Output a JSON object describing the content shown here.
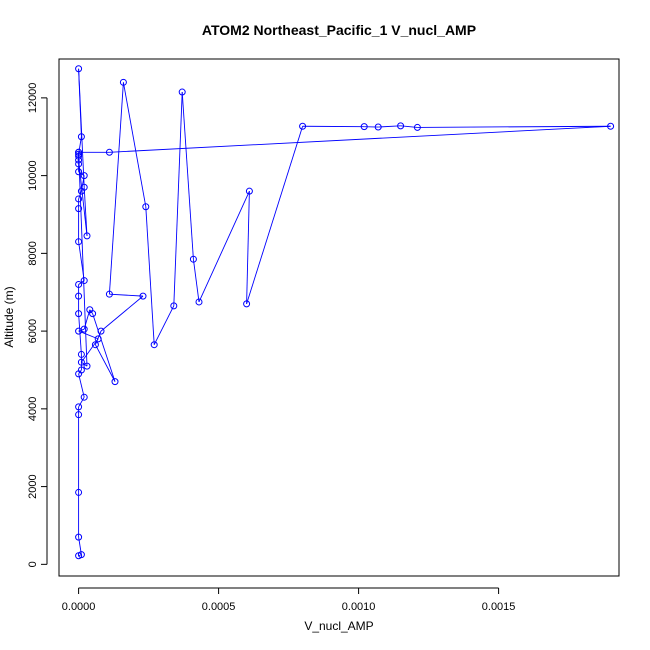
{
  "chart_data": {
    "type": "line",
    "title": "ATOM2 Northeast_Pacific_1 V_nucl_AMP",
    "xlabel": "V_nucl_AMP",
    "ylabel": "Altitude (m)",
    "xlim": [
      -7e-05,
      0.00193
    ],
    "ylim": [
      -300,
      13000
    ],
    "xticks": [
      0,
      0.0005,
      0.001,
      0.0015
    ],
    "xtick_labels": [
      "0.0000",
      "0.0005",
      "0.0010",
      "0.0015"
    ],
    "yticks": [
      0,
      2000,
      4000,
      6000,
      8000,
      10000,
      12000
    ],
    "ytick_labels": [
      "0",
      "2000",
      "4000",
      "6000",
      "8000",
      "10000",
      "12000"
    ],
    "grid": false,
    "legend": "none",
    "color": "#0000ff",
    "markers": "open-circle",
    "series": [
      {
        "x": [
          0.0,
          1e-05,
          0.0,
          0.0,
          0.0,
          0.0,
          2e-05,
          0.0,
          1e-05,
          1e-05,
          0.0,
          0.0,
          0.0,
          2e-05,
          0.0,
          0.0,
          0.0,
          1e-05,
          2e-05,
          0.0,
          0.0,
          0.0,
          0.0,
          1e-05,
          0.0,
          2e-05,
          3e-05,
          0.0,
          0.0,
          3e-05,
          1e-05,
          7e-05,
          0.0,
          2e-05,
          4e-05,
          5e-05,
          0.00013,
          6e-05,
          8e-05,
          0.00023,
          0.00011,
          0.00016,
          0.00024,
          0.00027,
          0.00034,
          0.00037,
          0.00041,
          0.00043,
          0.00061,
          0.0006,
          0.0008,
          0.00102,
          0.00107,
          0.00115,
          0.00121,
          0.0019,
          0.00011,
          0.0
        ],
        "y": [
          220,
          250,
          700,
          1850,
          3850,
          4050,
          4300,
          4900,
          5000,
          5400,
          6450,
          6900,
          7200,
          7300,
          8300,
          9150,
          9400,
          9600,
          10000,
          10100,
          10300,
          10500,
          10550,
          11000,
          12750,
          9700,
          8450,
          10400,
          10600,
          5100,
          5200,
          5800,
          6000,
          6050,
          6550,
          6450,
          4700,
          5650,
          6000,
          6900,
          6950,
          12400,
          9200,
          5650,
          6650,
          12150,
          7850,
          6750,
          9600,
          6700,
          11270,
          11260,
          11250,
          11280,
          11240,
          11270,
          10600,
          10600
        ]
      }
    ]
  }
}
